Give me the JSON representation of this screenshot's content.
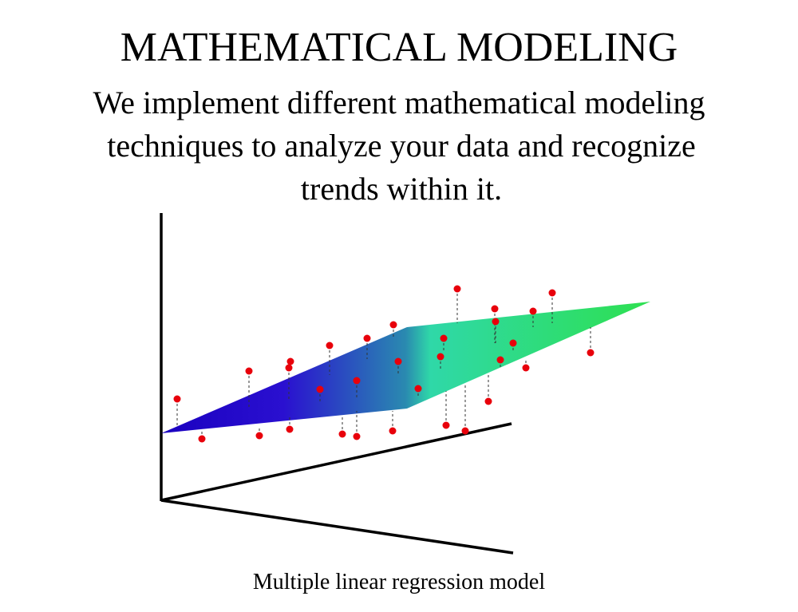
{
  "header": {
    "title": "MATHEMATICAL MODELING",
    "description": [
      "We implement different mathematical modeling",
      "techniques to analyze your data and recognize",
      "trends within it."
    ]
  },
  "figure": {
    "caption": "Multiple linear regression model"
  }
}
